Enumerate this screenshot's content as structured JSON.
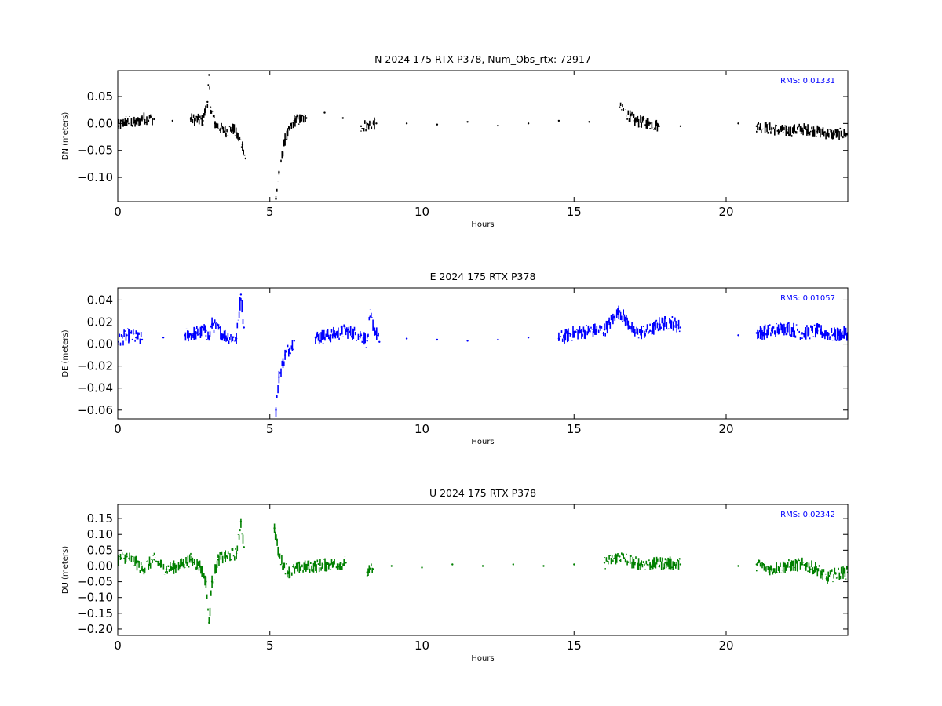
{
  "chart_data": [
    {
      "type": "scatter",
      "title": "N 2024 175 RTX  P378, Num_Obs_rtx: 72917",
      "xlabel": "Hours",
      "ylabel": "DN (meters)",
      "xlim": [
        0,
        24
      ],
      "ylim": [
        -0.145,
        0.098
      ],
      "xticks": [
        "0",
        "5",
        "10",
        "15",
        "20"
      ],
      "yticks": [
        {
          "value": 0.05,
          "label": "0.05"
        },
        {
          "value": 0.0,
          "label": "0.00"
        },
        {
          "value": -0.05,
          "label": "−0.05"
        },
        {
          "value": -0.1,
          "label": "−0.10"
        }
      ],
      "annotation": "RMS:  0.01331",
      "grid": false,
      "series": [
        {
          "color": "#000000",
          "x": [
            0.0,
            0.3,
            0.6,
            0.8,
            1.2,
            1.8,
            2.4,
            2.8,
            2.95,
            3.0,
            3.05,
            3.2,
            3.5,
            3.8,
            4.1,
            4.2,
            5.2,
            5.3,
            5.5,
            5.8,
            6.2,
            6.8,
            7.4,
            8.0,
            8.5,
            9.5,
            10.5,
            11.5,
            12.5,
            13.5,
            14.5,
            15.5,
            16.5,
            17.0,
            17.5,
            17.8,
            18.5,
            20.4,
            21.0,
            21.5,
            22.0,
            22.5,
            23.0,
            23.5,
            24.0
          ],
          "y": [
            -0.005,
            0.005,
            0.0,
            0.01,
            0.008,
            0.005,
            0.008,
            0.005,
            0.04,
            0.09,
            0.03,
            0.0,
            -0.015,
            -0.01,
            -0.04,
            -0.065,
            -0.14,
            -0.09,
            -0.03,
            0.005,
            0.01,
            0.02,
            0.01,
            -0.005,
            0.0,
            0.0,
            -0.002,
            0.003,
            -0.004,
            0.0,
            0.005,
            0.003,
            0.03,
            0.005,
            0.0,
            -0.005,
            -0.005,
            0.0,
            -0.005,
            -0.01,
            -0.015,
            -0.01,
            -0.015,
            -0.02,
            -0.02
          ],
          "spread": 0.012
        }
      ]
    },
    {
      "type": "scatter",
      "title": "E 2024 175 RTX  P378",
      "xlabel": "Hours",
      "ylabel": "DE (meters)",
      "xlim": [
        0,
        24
      ],
      "ylim": [
        -0.068,
        0.051
      ],
      "xticks": [
        "0",
        "5",
        "10",
        "15",
        "20"
      ],
      "yticks": [
        {
          "value": 0.04,
          "label": "0.04"
        },
        {
          "value": 0.02,
          "label": "0.02"
        },
        {
          "value": 0.0,
          "label": "0.00"
        },
        {
          "value": -0.02,
          "label": "−0.02"
        },
        {
          "value": -0.04,
          "label": "−0.04"
        },
        {
          "value": -0.06,
          "label": "−0.06"
        }
      ],
      "annotation": "RMS:  0.01057",
      "grid": false,
      "series": [
        {
          "color": "#0000ff",
          "x": [
            0.0,
            0.3,
            0.6,
            0.8,
            1.5,
            2.2,
            2.6,
            2.9,
            3.0,
            3.1,
            3.5,
            3.9,
            4.05,
            4.15,
            5.2,
            5.3,
            5.5,
            5.8,
            6.5,
            7.0,
            7.5,
            8.0,
            8.2,
            8.3,
            8.6,
            9.5,
            10.5,
            11.5,
            12.5,
            13.5,
            14.5,
            15.0,
            15.5,
            16.0,
            16.5,
            17.0,
            17.5,
            17.8,
            18.2,
            18.5,
            20.4,
            21.0,
            21.5,
            22.0,
            22.5,
            23.0,
            23.5,
            24.0
          ],
          "y": [
            0.002,
            0.008,
            0.006,
            0.004,
            0.006,
            0.008,
            0.01,
            0.012,
            0.005,
            0.018,
            0.008,
            0.005,
            0.045,
            0.015,
            -0.06,
            -0.03,
            -0.01,
            0.003,
            0.006,
            0.008,
            0.012,
            0.008,
            0.003,
            0.025,
            0.002,
            0.005,
            0.004,
            0.003,
            0.004,
            0.006,
            0.005,
            0.01,
            0.012,
            0.013,
            0.03,
            0.01,
            0.012,
            0.018,
            0.02,
            0.015,
            0.008,
            0.01,
            0.012,
            0.015,
            0.01,
            0.012,
            0.008,
            0.01
          ],
          "spread": 0.007
        }
      ]
    },
    {
      "type": "scatter",
      "title": "U 2024 175 RTX  P378",
      "xlabel": "Hours",
      "ylabel": "DU (meters)",
      "xlim": [
        0,
        24
      ],
      "ylim": [
        -0.22,
        0.195
      ],
      "xticks": [
        "0",
        "5",
        "10",
        "15",
        "20"
      ],
      "yticks": [
        {
          "value": 0.15,
          "label": "0.15"
        },
        {
          "value": 0.1,
          "label": "0.10"
        },
        {
          "value": 0.05,
          "label": "0.05"
        },
        {
          "value": 0.0,
          "label": "0.00"
        },
        {
          "value": -0.05,
          "label": "−0.05"
        },
        {
          "value": -0.1,
          "label": "−0.10"
        },
        {
          "value": -0.15,
          "label": "−0.15"
        },
        {
          "value": -0.2,
          "label": "−0.20"
        }
      ],
      "annotation": "RMS:  0.02342",
      "grid": false,
      "series": [
        {
          "color": "#008000",
          "x": [
            0.0,
            0.3,
            0.6,
            0.8,
            1.2,
            1.6,
            2.0,
            2.4,
            2.7,
            2.9,
            3.0,
            3.1,
            3.3,
            3.6,
            3.9,
            4.05,
            4.15,
            5.15,
            5.3,
            5.6,
            6.0,
            6.5,
            7.0,
            7.5,
            8.2,
            8.4,
            9.0,
            10.0,
            11.0,
            12.0,
            13.0,
            14.0,
            15.0,
            16.0,
            16.5,
            17.0,
            17.5,
            18.0,
            18.5,
            20.4,
            21.0,
            21.5,
            22.0,
            22.5,
            23.0,
            23.3,
            23.6,
            24.0
          ],
          "y": [
            0.02,
            0.03,
            0.01,
            -0.01,
            0.02,
            -0.01,
            0.0,
            0.02,
            0.0,
            -0.05,
            -0.18,
            -0.05,
            0.02,
            0.03,
            0.04,
            0.14,
            0.06,
            0.12,
            0.03,
            -0.02,
            -0.005,
            0.0,
            0.005,
            0.01,
            -0.02,
            -0.01,
            0.0,
            -0.005,
            0.005,
            0.0,
            0.005,
            0.0,
            0.005,
            0.01,
            0.03,
            0.01,
            0.005,
            0.01,
            0.005,
            0.0,
            0.005,
            -0.01,
            0.0,
            0.005,
            -0.01,
            -0.04,
            -0.025,
            -0.02
          ],
          "spread": 0.022
        }
      ]
    }
  ]
}
